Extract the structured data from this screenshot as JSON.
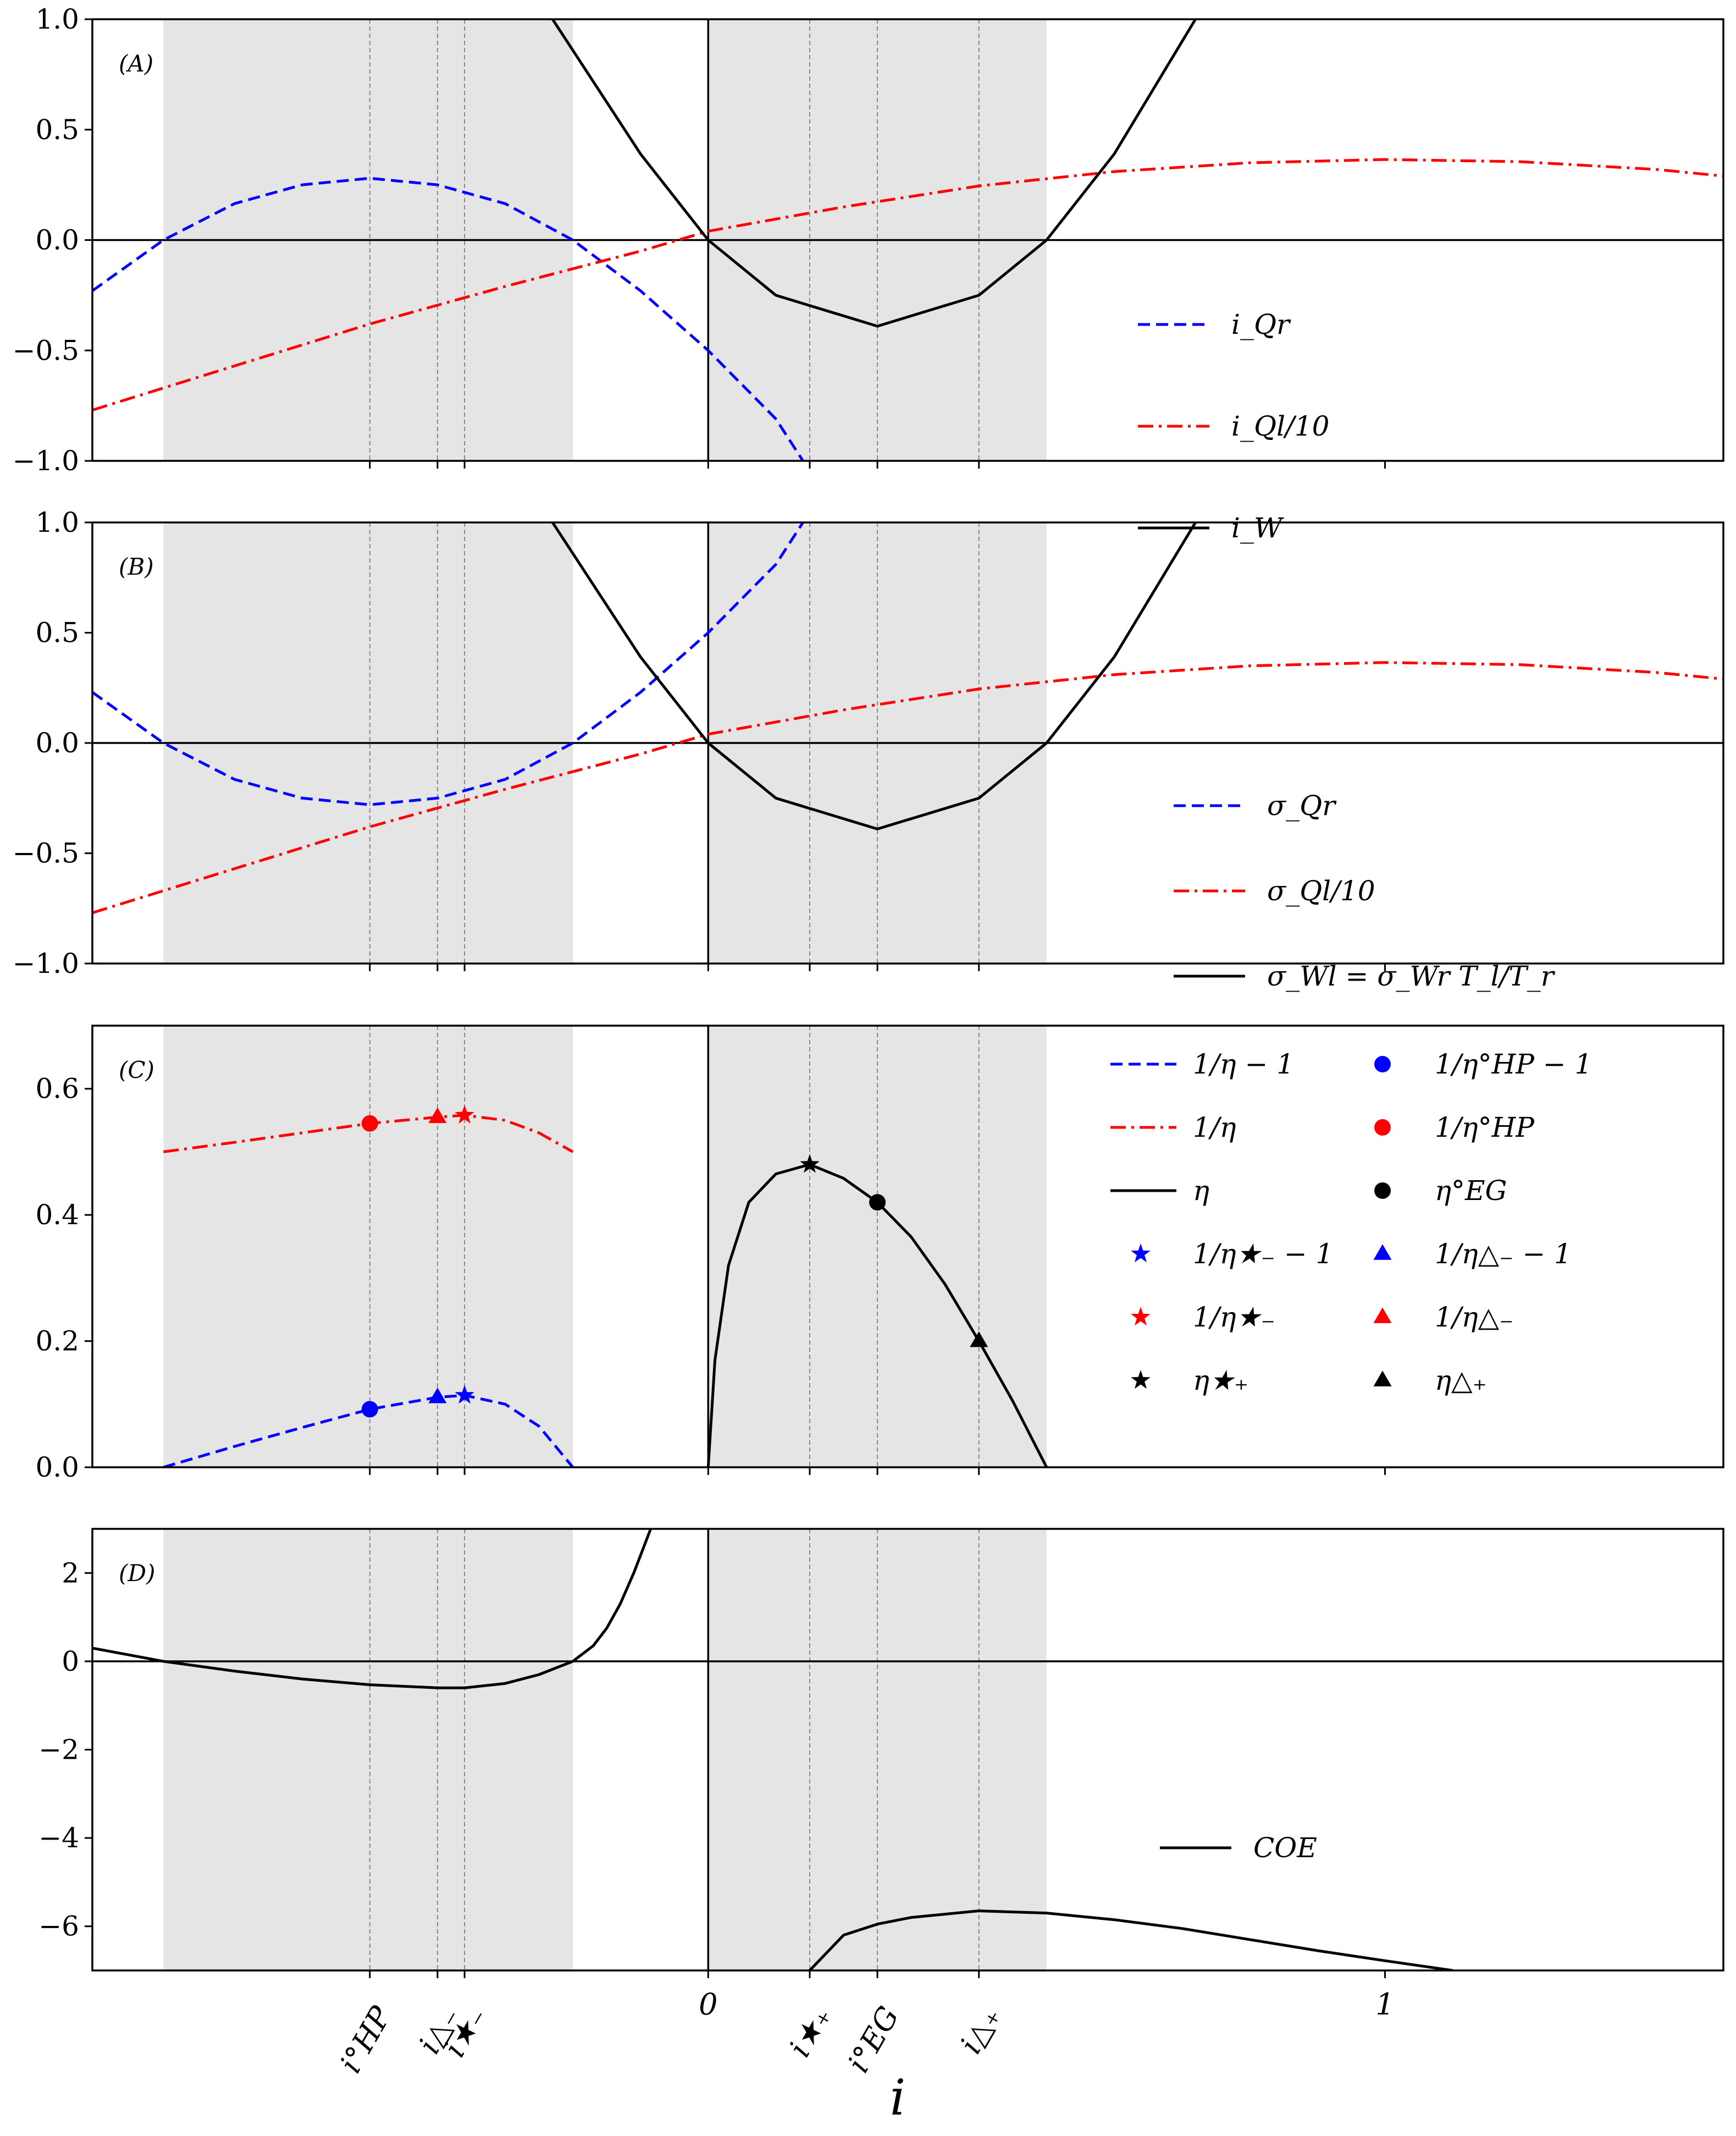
{
  "chart_data": {
    "type": "line",
    "xlabel": "i",
    "x_range": [
      -0.91,
      1.5
    ],
    "x_ticks": [
      {
        "value": -0.5,
        "label": "i°HP"
      },
      {
        "value": -0.4,
        "label": "i△₋"
      },
      {
        "value": -0.36,
        "label": "i★₋"
      },
      {
        "value": 0.0,
        "label": "0"
      },
      {
        "value": 0.15,
        "label": "i★₊"
      },
      {
        "value": 0.25,
        "label": "i°EG"
      },
      {
        "value": 0.4,
        "label": "i△₊"
      },
      {
        "value": 1.0,
        "label": "1"
      }
    ],
    "shaded_regions": [
      [
        -0.805,
        -0.2
      ],
      [
        0.0,
        0.5
      ]
    ],
    "panels": [
      {
        "label": "(A)",
        "ylim": [
          -1.0,
          1.0
        ],
        "y_ticks": [
          "1.0",
          "0.5",
          "0.0",
          "−0.5",
          "−1.0"
        ],
        "legend_position": "lower-right",
        "series": [
          {
            "name": "i_Qr",
            "label": "i_Qr",
            "style": "dashed",
            "color": "#0000ff",
            "x": [
              -0.91,
              -0.805,
              -0.7,
              -0.6,
              -0.5,
              -0.4,
              -0.3,
              -0.2,
              -0.1,
              0.0,
              0.1,
              0.14
            ],
            "y": [
              -0.23,
              0.0,
              0.165,
              0.25,
              0.28,
              0.25,
              0.165,
              0.0,
              -0.23,
              -0.5,
              -0.81,
              -1.0
            ]
          },
          {
            "name": "i_Ql/10",
            "label": "i_Ql/10",
            "style": "dashdot",
            "color": "#ff0000",
            "x": [
              -0.91,
              -0.7,
              -0.5,
              -0.3,
              -0.1,
              0.0,
              0.2,
              0.4,
              0.6,
              0.8,
              1.0,
              1.2,
              1.4,
              1.5
            ],
            "y": [
              -0.77,
              -0.57,
              -0.38,
              -0.21,
              -0.05,
              0.04,
              0.15,
              0.245,
              0.31,
              0.35,
              0.365,
              0.355,
              0.32,
              0.29
            ]
          },
          {
            "name": "i_W",
            "label": "i_W",
            "style": "solid",
            "color": "#000000",
            "x": [
              -0.23,
              -0.1,
              0.0,
              0.1,
              0.25,
              0.4,
              0.5,
              0.6,
              0.72
            ],
            "y": [
              1.0,
              0.39,
              0.0,
              -0.25,
              -0.39,
              -0.25,
              0.0,
              0.39,
              1.0
            ]
          }
        ]
      },
      {
        "label": "(B)",
        "ylim": [
          -1.0,
          1.0
        ],
        "y_ticks": [
          "1.0",
          "0.5",
          "0.0",
          "−0.5",
          "−1.0"
        ],
        "legend_position": "lower-right",
        "series": [
          {
            "name": "sigma_Qr",
            "label": "σ_Qr",
            "style": "dashed",
            "color": "#0000ff",
            "x": [
              -0.91,
              -0.805,
              -0.7,
              -0.6,
              -0.5,
              -0.4,
              -0.3,
              -0.2,
              -0.1,
              0.0,
              0.1,
              0.14
            ],
            "y": [
              0.23,
              0.0,
              -0.165,
              -0.25,
              -0.28,
              -0.25,
              -0.165,
              0.0,
              0.23,
              0.5,
              0.81,
              1.0
            ]
          },
          {
            "name": "sigma_Ql/10",
            "label": "σ_Ql/10",
            "style": "dashdot",
            "color": "#ff0000",
            "x": [
              -0.91,
              -0.7,
              -0.5,
              -0.3,
              -0.1,
              0.0,
              0.2,
              0.4,
              0.6,
              0.8,
              1.0,
              1.2,
              1.4,
              1.5
            ],
            "y": [
              -0.77,
              -0.57,
              -0.38,
              -0.21,
              -0.05,
              0.04,
              0.15,
              0.245,
              0.31,
              0.35,
              0.365,
              0.355,
              0.32,
              0.29
            ]
          },
          {
            "name": "sigma_Wl",
            "label": "σ_Wl = σ_Wr T_l/T_r",
            "style": "solid",
            "color": "#000000",
            "x": [
              -0.23,
              -0.1,
              0.0,
              0.1,
              0.25,
              0.4,
              0.5,
              0.6,
              0.72
            ],
            "y": [
              1.0,
              0.39,
              0.0,
              -0.25,
              -0.39,
              -0.25,
              0.0,
              0.39,
              1.0
            ]
          }
        ]
      },
      {
        "label": "(C)",
        "ylim": [
          0.0,
          0.7
        ],
        "y_ticks": [
          "0.6",
          "0.4",
          "0.2",
          "0.0"
        ],
        "legend_position": "top-right",
        "series": [
          {
            "name": "1/eta - 1",
            "label": "1/η − 1",
            "style": "dashed",
            "color": "#0000ff",
            "x": [
              -0.805,
              -0.7,
              -0.6,
              -0.5,
              -0.4,
              -0.36,
              -0.3,
              -0.25,
              -0.2
            ],
            "y": [
              0.0,
              0.033,
              0.063,
              0.092,
              0.111,
              0.114,
              0.1,
              0.065,
              0.0
            ]
          },
          {
            "name": "1/eta",
            "label": "1/η",
            "style": "dashdot",
            "color": "#ff0000",
            "x": [
              -0.805,
              -0.7,
              -0.6,
              -0.5,
              -0.4,
              -0.36,
              -0.3,
              -0.25,
              -0.2
            ],
            "y": [
              0.5,
              0.515,
              0.53,
              0.545,
              0.555,
              0.558,
              0.55,
              0.53,
              0.5
            ]
          },
          {
            "name": "eta",
            "label": "η",
            "style": "solid",
            "color": "#000000",
            "x": [
              0.0,
              0.01,
              0.03,
              0.06,
              0.1,
              0.15,
              0.2,
              0.25,
              0.3,
              0.35,
              0.4,
              0.45,
              0.5
            ],
            "y": [
              0.0,
              0.17,
              0.32,
              0.42,
              0.465,
              0.48,
              0.458,
              0.42,
              0.365,
              0.29,
              0.2,
              0.105,
              0.0
            ]
          }
        ],
        "markers": [
          {
            "name": "1/eta°HP - 1",
            "label": "1/η°HP − 1",
            "shape": "circle",
            "color": "#0000ff",
            "x": -0.5,
            "y": 0.092
          },
          {
            "name": "1/eta°HP",
            "label": "1/η°HP",
            "shape": "circle",
            "color": "#ff0000",
            "x": -0.5,
            "y": 0.545
          },
          {
            "name": "eta°EG",
            "label": "η°EG",
            "shape": "circle",
            "color": "#000000",
            "x": 0.25,
            "y": 0.42
          },
          {
            "name": "1/eta△- - 1",
            "label": "1/η△₋ − 1",
            "shape": "triangle",
            "color": "#0000ff",
            "x": -0.4,
            "y": 0.111
          },
          {
            "name": "1/eta△-",
            "label": "1/η△₋",
            "shape": "triangle",
            "color": "#ff0000",
            "x": -0.4,
            "y": 0.555
          },
          {
            "name": "eta△+",
            "label": "η△₊",
            "shape": "triangle",
            "color": "#000000",
            "x": 0.4,
            "y": 0.2
          },
          {
            "name": "1/eta★- - 1",
            "label": "1/η★₋ − 1",
            "shape": "star",
            "color": "#0000ff",
            "x": -0.36,
            "y": 0.114
          },
          {
            "name": "1/eta★-",
            "label": "1/η★₋",
            "shape": "star",
            "color": "#ff0000",
            "x": -0.36,
            "y": 0.558
          },
          {
            "name": "eta★+",
            "label": "η★₊",
            "shape": "star",
            "color": "#000000",
            "x": 0.15,
            "y": 0.48
          }
        ]
      },
      {
        "label": "(D)",
        "ylim": [
          -7.0,
          3.0
        ],
        "y_ticks": [
          "2",
          "0",
          "−2",
          "−4",
          "−6"
        ],
        "legend_position": "lower-right",
        "series": [
          {
            "name": "COE",
            "label": "COE",
            "style": "solid",
            "color": "#000000",
            "segments": [
              {
                "x": [
                  -0.91,
                  -0.805,
                  -0.7,
                  -0.6,
                  -0.5,
                  -0.4,
                  -0.36,
                  -0.3,
                  -0.25,
                  -0.2,
                  -0.17,
                  -0.15,
                  -0.13,
                  -0.11,
                  -0.095,
                  -0.085
                ],
                "y": [
                  0.3,
                  0.0,
                  -0.22,
                  -0.4,
                  -0.53,
                  -0.6,
                  -0.6,
                  -0.5,
                  -0.3,
                  0.0,
                  0.35,
                  0.75,
                  1.3,
                  2.0,
                  2.6,
                  3.0
                ]
              },
              {
                "x": [
                  0.15,
                  0.2,
                  0.25,
                  0.3,
                  0.4,
                  0.5,
                  0.6,
                  0.7,
                  0.8,
                  0.9,
                  1.0,
                  1.1
                ],
                "y": [
                  -7.0,
                  -6.2,
                  -5.95,
                  -5.8,
                  -5.65,
                  -5.7,
                  -5.85,
                  -6.05,
                  -6.3,
                  -6.55,
                  -6.78,
                  -7.0
                ]
              }
            ]
          }
        ]
      }
    ]
  }
}
